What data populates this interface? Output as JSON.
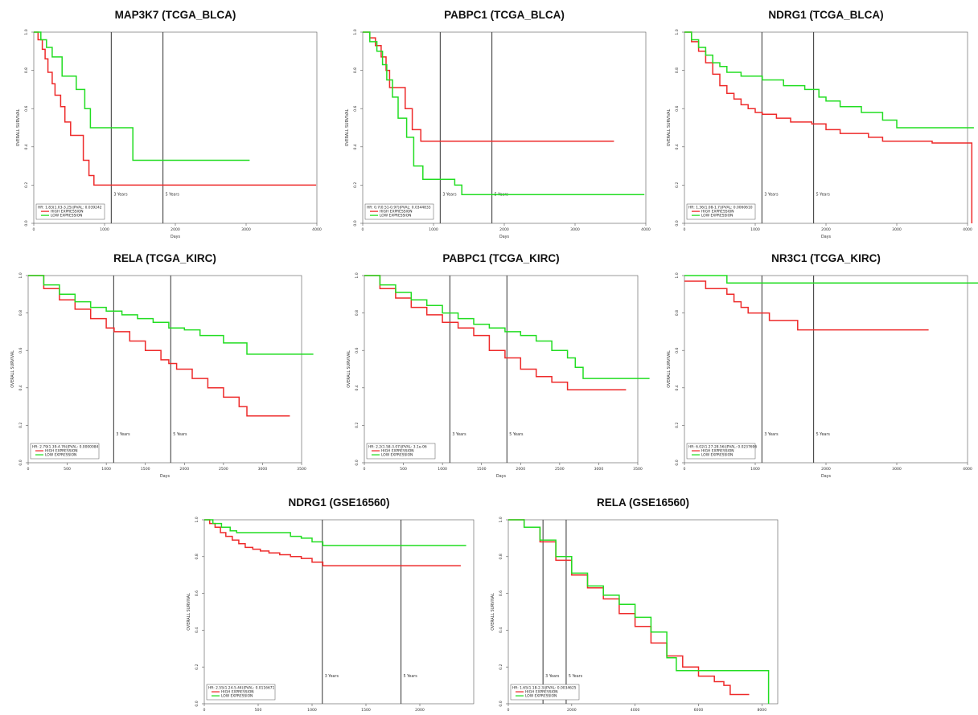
{
  "colors": {
    "high": "#ee2a2a",
    "low": "#22dd22",
    "axis": "#555555",
    "marker": "#444444"
  },
  "chart_data": [
    {
      "type": "line",
      "title": "MAP3K7 (TCGA_BLCA)",
      "xlabel": "Days",
      "ylabel": "OVERALL SURVIVAL",
      "xlim": [
        0,
        4000
      ],
      "ylim": [
        0,
        1
      ],
      "xticks": [
        0,
        1000,
        2000,
        3000,
        4000
      ],
      "yticks": [
        0,
        0.2,
        0.4,
        0.6,
        0.8,
        1.0
      ],
      "markers": [
        {
          "x": 1095,
          "label": "3 Years"
        },
        {
          "x": 1825,
          "label": "5 Years"
        }
      ],
      "stats": "HR: 1.83(1.03-3.25)|PVAL: 0.039242",
      "grid": false,
      "legend_position": "bottom-left",
      "series": [
        {
          "name": "HIGH EXPRESSION",
          "color": "#ee2a2a",
          "x": [
            0,
            60,
            120,
            160,
            200,
            260,
            300,
            380,
            440,
            520,
            600,
            700,
            780,
            850,
            3990
          ],
          "y": [
            1.0,
            0.96,
            0.91,
            0.86,
            0.79,
            0.73,
            0.67,
            0.61,
            0.53,
            0.46,
            0.46,
            0.33,
            0.25,
            0.2,
            0.2
          ]
        },
        {
          "name": "LOW EXPRESSION",
          "color": "#22dd22",
          "x": [
            0,
            100,
            180,
            260,
            400,
            530,
            600,
            720,
            800,
            900,
            1400,
            3050
          ],
          "y": [
            1.0,
            0.96,
            0.92,
            0.87,
            0.77,
            0.77,
            0.7,
            0.6,
            0.5,
            0.5,
            0.33,
            0.33
          ]
        }
      ]
    },
    {
      "type": "line",
      "title": "PABPC1 (TCGA_BLCA)",
      "xlabel": "Days",
      "ylabel": "OVERALL SURVIVAL",
      "xlim": [
        0,
        4000
      ],
      "ylim": [
        0,
        1
      ],
      "xticks": [
        0,
        1000,
        2000,
        3000,
        4000
      ],
      "yticks": [
        0,
        0.2,
        0.4,
        0.6,
        0.8,
        1.0
      ],
      "markers": [
        {
          "x": 1095,
          "label": "3 Years"
        },
        {
          "x": 1825,
          "label": "5 Years"
        }
      ],
      "stats": "HR: 0.7(0.51-0.97)|PVAL: 0.0344833",
      "grid": false,
      "legend_position": "bottom-left",
      "series": [
        {
          "name": "HIGH EXPRESSION",
          "color": "#ee2a2a",
          "x": [
            0,
            100,
            180,
            260,
            330,
            380,
            450,
            600,
            700,
            820,
            1100,
            3550
          ],
          "y": [
            1.0,
            0.97,
            0.93,
            0.87,
            0.8,
            0.71,
            0.71,
            0.6,
            0.49,
            0.43,
            0.43,
            0.43
          ]
        },
        {
          "name": "LOW EXPRESSION",
          "color": "#22dd22",
          "x": [
            0,
            100,
            200,
            280,
            340,
            420,
            500,
            620,
            720,
            850,
            1100,
            1300,
            1400,
            3980
          ],
          "y": [
            1.0,
            0.95,
            0.9,
            0.83,
            0.75,
            0.66,
            0.55,
            0.45,
            0.3,
            0.23,
            0.23,
            0.2,
            0.15,
            0.15
          ]
        }
      ]
    },
    {
      "type": "line",
      "title": "NDRG1 (TCGA_BLCA)",
      "xlabel": "Days",
      "ylabel": "OVERALL SURVIVAL",
      "xlim": [
        0,
        4000
      ],
      "ylim": [
        0,
        1
      ],
      "xticks": [
        0,
        1000,
        2000,
        3000,
        4000
      ],
      "yticks": [
        0,
        0.2,
        0.4,
        0.6,
        0.8,
        1.0
      ],
      "markers": [
        {
          "x": 1095,
          "label": "3 Years"
        },
        {
          "x": 1825,
          "label": "5 Years"
        }
      ],
      "stats": "HR: 1.36(1.08-1.7)|PVAL: 0.0060610",
      "grid": false,
      "legend_position": "bottom-left",
      "series": [
        {
          "name": "HIGH EXPRESSION",
          "color": "#ee2a2a",
          "x": [
            0,
            100,
            200,
            300,
            400,
            500,
            600,
            700,
            800,
            900,
            1000,
            1100,
            1300,
            1500,
            1800,
            2000,
            2200,
            2600,
            2800,
            3000,
            3500,
            4050,
            4060
          ],
          "y": [
            1.0,
            0.95,
            0.9,
            0.84,
            0.78,
            0.72,
            0.68,
            0.65,
            0.62,
            0.6,
            0.58,
            0.57,
            0.55,
            0.53,
            0.52,
            0.49,
            0.47,
            0.45,
            0.43,
            0.43,
            0.42,
            0.42,
            0.0
          ]
        },
        {
          "name": "LOW EXPRESSION",
          "color": "#22dd22",
          "x": [
            0,
            100,
            200,
            300,
            400,
            500,
            600,
            800,
            1100,
            1400,
            1700,
            1900,
            2000,
            2200,
            2500,
            2800,
            3000,
            4090
          ],
          "y": [
            1.0,
            0.96,
            0.92,
            0.88,
            0.84,
            0.82,
            0.79,
            0.77,
            0.75,
            0.72,
            0.7,
            0.66,
            0.64,
            0.61,
            0.58,
            0.54,
            0.5,
            0.5
          ]
        }
      ]
    },
    {
      "type": "line",
      "title": "RELA (TCGA_KIRC)",
      "xlabel": "Days",
      "ylabel": "OVERALL SURVIVAL",
      "xlim": [
        0,
        3500
      ],
      "ylim": [
        0,
        1
      ],
      "xticks": [
        0,
        500,
        1000,
        1500,
        2000,
        2500,
        3000,
        3500
      ],
      "yticks": [
        0,
        0.2,
        0.4,
        0.6,
        0.8,
        1.0
      ],
      "markers": [
        {
          "x": 1095,
          "label": "3 Years"
        },
        {
          "x": 1825,
          "label": "5 Years"
        }
      ],
      "stats": "HR: 2.79(1.39-4.76)|PVAL: 0.0000084",
      "grid": false,
      "legend_position": "bottom-left",
      "series": [
        {
          "name": "HIGH EXPRESSION",
          "color": "#ee2a2a",
          "x": [
            0,
            200,
            400,
            600,
            800,
            1000,
            1100,
            1300,
            1500,
            1700,
            1800,
            1900,
            2100,
            2300,
            2500,
            2700,
            2800,
            3350
          ],
          "y": [
            1.0,
            0.93,
            0.87,
            0.82,
            0.77,
            0.72,
            0.7,
            0.65,
            0.6,
            0.55,
            0.53,
            0.5,
            0.45,
            0.4,
            0.35,
            0.3,
            0.25,
            0.25
          ]
        },
        {
          "name": "LOW EXPRESSION",
          "color": "#22dd22",
          "x": [
            0,
            200,
            400,
            600,
            800,
            1000,
            1200,
            1400,
            1600,
            1800,
            2000,
            2200,
            2500,
            2800,
            3650
          ],
          "y": [
            1.0,
            0.95,
            0.9,
            0.86,
            0.83,
            0.81,
            0.79,
            0.77,
            0.75,
            0.72,
            0.71,
            0.68,
            0.64,
            0.58,
            0.58
          ]
        }
      ]
    },
    {
      "type": "line",
      "title": "PABPC1 (TCGA_KIRC)",
      "xlabel": "Days",
      "ylabel": "OVERALL SURVIVAL",
      "xlim": [
        0,
        3500
      ],
      "ylim": [
        0,
        1
      ],
      "xticks": [
        0,
        500,
        1000,
        1500,
        2000,
        2500,
        3000,
        3500
      ],
      "yticks": [
        0,
        0.2,
        0.4,
        0.6,
        0.8,
        1.0
      ],
      "markers": [
        {
          "x": 1095,
          "label": "3 Years"
        },
        {
          "x": 1825,
          "label": "5 Years"
        }
      ],
      "stats": "HR: 2.2(1.58-3.07)|PVAL: 3.1e-06",
      "grid": false,
      "legend_position": "bottom-left",
      "series": [
        {
          "name": "HIGH EXPRESSION",
          "color": "#ee2a2a",
          "x": [
            0,
            200,
            400,
            600,
            800,
            1000,
            1200,
            1400,
            1600,
            1800,
            2000,
            2200,
            2400,
            2600,
            3350
          ],
          "y": [
            1.0,
            0.93,
            0.88,
            0.83,
            0.79,
            0.75,
            0.72,
            0.68,
            0.6,
            0.56,
            0.5,
            0.46,
            0.43,
            0.39,
            0.39
          ]
        },
        {
          "name": "LOW EXPRESSION",
          "color": "#22dd22",
          "x": [
            0,
            200,
            400,
            600,
            800,
            1000,
            1200,
            1400,
            1600,
            1800,
            2000,
            2200,
            2400,
            2600,
            2700,
            2800,
            3650
          ],
          "y": [
            1.0,
            0.95,
            0.91,
            0.87,
            0.84,
            0.8,
            0.77,
            0.74,
            0.72,
            0.7,
            0.68,
            0.65,
            0.6,
            0.56,
            0.51,
            0.45,
            0.45
          ]
        }
      ]
    },
    {
      "type": "line",
      "title": "NR3C1 (TCGA_KIRC)",
      "xlabel": "Days",
      "ylabel": "OVERALL SURVIVAL",
      "xlim": [
        0,
        4000
      ],
      "ylim": [
        0,
        1
      ],
      "xticks": [
        0,
        1000,
        2000,
        3000,
        4000
      ],
      "yticks": [
        0,
        0.2,
        0.4,
        0.6,
        0.8,
        1.0
      ],
      "markers": [
        {
          "x": 1095,
          "label": "3 Years"
        },
        {
          "x": 1825,
          "label": "5 Years"
        }
      ],
      "stats": "HR: 6.02(1.27-28.56)|PVAL: 0.0237696",
      "grid": false,
      "legend_position": "bottom-left",
      "series": [
        {
          "name": "HIGH EXPRESSION",
          "color": "#ee2a2a",
          "x": [
            0,
            300,
            600,
            700,
            800,
            900,
            1000,
            1200,
            1600,
            3450
          ],
          "y": [
            0.97,
            0.93,
            0.9,
            0.86,
            0.83,
            0.8,
            0.8,
            0.76,
            0.71,
            0.71
          ]
        },
        {
          "name": "LOW EXPRESSION",
          "color": "#22dd22",
          "x": [
            0,
            400,
            600,
            4400
          ],
          "y": [
            1.0,
            1.0,
            0.96,
            0.96
          ]
        }
      ]
    },
    {
      "type": "line",
      "title": "NDRG1 (GSE16560)",
      "xlabel": "Days",
      "ylabel": "OVERALL SURVIVAL",
      "xlim": [
        0,
        2500
      ],
      "ylim": [
        0,
        1
      ],
      "xticks": [
        0,
        500,
        1000,
        1500,
        2000
      ],
      "yticks": [
        0,
        0.2,
        0.4,
        0.6,
        0.8,
        1.0
      ],
      "markers": [
        {
          "x": 1095,
          "label": "3 Years"
        },
        {
          "x": 1825,
          "label": "5 Years"
        }
      ],
      "stats": "HR: 2.55(1.24-5.44)|PVAL: 0.0116671",
      "grid": false,
      "legend_position": "bottom-left",
      "series": [
        {
          "name": "HIGH EXPRESSION",
          "color": "#ee2a2a",
          "x": [
            0,
            50,
            100,
            150,
            200,
            260,
            320,
            380,
            450,
            520,
            600,
            700,
            800,
            900,
            1000,
            1100,
            2380
          ],
          "y": [
            1.0,
            0.98,
            0.96,
            0.93,
            0.91,
            0.89,
            0.87,
            0.85,
            0.84,
            0.83,
            0.82,
            0.81,
            0.8,
            0.79,
            0.77,
            0.75,
            0.75
          ]
        },
        {
          "name": "LOW EXPRESSION",
          "color": "#22dd22",
          "x": [
            0,
            80,
            160,
            240,
            300,
            700,
            800,
            900,
            1000,
            1100,
            2430
          ],
          "y": [
            1.0,
            0.98,
            0.96,
            0.94,
            0.93,
            0.93,
            0.91,
            0.9,
            0.88,
            0.86,
            0.86
          ]
        }
      ]
    },
    {
      "type": "line",
      "title": "RELA (GSE16560)",
      "xlabel": "Days",
      "ylabel": "OVERALL SURVIVAL",
      "xlim": [
        0,
        8500
      ],
      "ylim": [
        0,
        1
      ],
      "xticks": [
        0,
        2000,
        4000,
        6000,
        8000
      ],
      "yticks": [
        0,
        0.2,
        0.4,
        0.6,
        0.8,
        1.0
      ],
      "markers": [
        {
          "x": 1095,
          "label": "3 Years"
        },
        {
          "x": 1825,
          "label": "5 Years"
        }
      ],
      "stats": "HR: 1.65(1.18-2.3)|PVAL: 0.0034625",
      "grid": false,
      "legend_position": "bottom-left",
      "series": [
        {
          "name": "HIGH EXPRESSION",
          "color": "#ee2a2a",
          "x": [
            0,
            500,
            1000,
            1500,
            2000,
            2500,
            3000,
            3500,
            4000,
            4500,
            5000,
            5500,
            6000,
            6500,
            6800,
            7000,
            7600
          ],
          "y": [
            1.0,
            0.96,
            0.88,
            0.78,
            0.7,
            0.63,
            0.57,
            0.49,
            0.42,
            0.33,
            0.26,
            0.2,
            0.15,
            0.12,
            0.1,
            0.05,
            0.05
          ]
        },
        {
          "name": "LOW EXPRESSION",
          "color": "#22dd22",
          "x": [
            0,
            500,
            1000,
            1500,
            2000,
            2500,
            3000,
            3500,
            4000,
            4500,
            5000,
            5300,
            8200,
            8210
          ],
          "y": [
            1.0,
            0.96,
            0.89,
            0.8,
            0.71,
            0.64,
            0.59,
            0.54,
            0.47,
            0.39,
            0.25,
            0.18,
            0.18,
            0.0
          ]
        }
      ]
    }
  ]
}
